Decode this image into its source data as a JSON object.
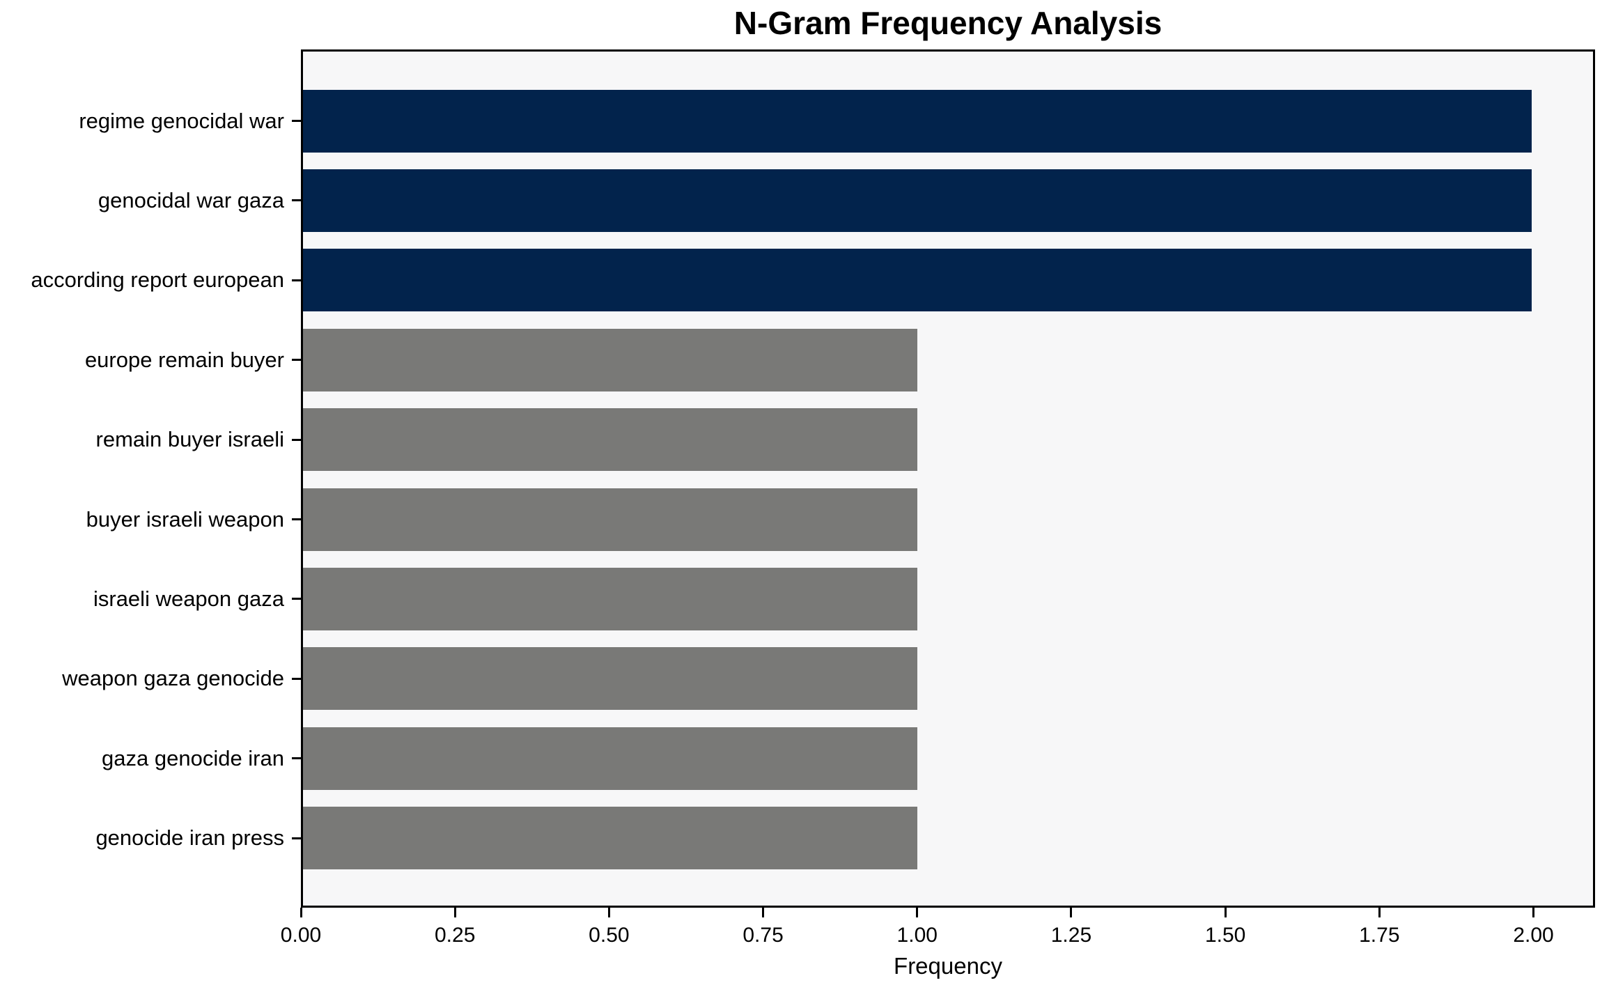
{
  "chart_data": {
    "type": "bar",
    "orientation": "horizontal",
    "title": "N-Gram Frequency Analysis",
    "xlabel": "Frequency",
    "ylabel": "",
    "categories": [
      "regime genocidal war",
      "genocidal war gaza",
      "according report european",
      "europe remain buyer",
      "remain buyer israeli",
      "buyer israeli weapon",
      "israeli weapon gaza",
      "weapon gaza genocide",
      "gaza genocide iran",
      "genocide iran press"
    ],
    "values": [
      2,
      2,
      2,
      1,
      1,
      1,
      1,
      1,
      1,
      1
    ],
    "xlim": [
      0,
      2.1
    ],
    "xtick_labels": [
      "0.00",
      "0.25",
      "0.50",
      "0.75",
      "1.00",
      "1.25",
      "1.50",
      "1.75",
      "2.00"
    ],
    "xtick_values": [
      0,
      0.25,
      0.5,
      0.75,
      1.0,
      1.25,
      1.5,
      1.75,
      2.0
    ],
    "highlight_count": 3,
    "colors": {
      "highlight_bar": "#02234c",
      "default_bar": "#797977",
      "plot_background": "#f7f7f8",
      "figure_background": "#ffffff",
      "spine": "#000000",
      "text": "#000000"
    },
    "grid": false,
    "legend": null
  }
}
